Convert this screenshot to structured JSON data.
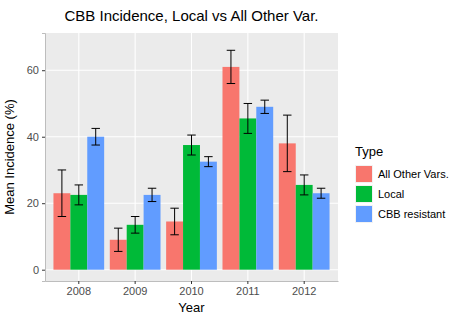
{
  "chart_data": {
    "type": "bar",
    "title": "CBB Incidence, Local vs All Other Var.",
    "x_label": "Year",
    "y_label": "Mean Incidence (%)",
    "legend_title": "Type",
    "categories": [
      "2008",
      "2009",
      "2010",
      "2011",
      "2012"
    ],
    "series": [
      {
        "name": "All Other Vars.",
        "color": "#F8766D",
        "values": [
          23,
          9,
          14.5,
          61,
          38
        ],
        "errors": [
          7,
          3.5,
          4,
          5,
          8.5
        ]
      },
      {
        "name": "Local",
        "color": "#00BA38",
        "values": [
          22.5,
          13.5,
          37.5,
          45.5,
          25.5
        ],
        "errors": [
          3,
          2.5,
          3,
          4.5,
          3
        ]
      },
      {
        "name": "CBB resistant",
        "color": "#619CFF",
        "values": [
          40,
          22.5,
          32.5,
          49,
          23
        ],
        "errors": [
          2.5,
          2,
          1.5,
          2,
          1.5
        ]
      }
    ],
    "ylim": [
      -3.4,
      71.2
    ],
    "yticks": [
      0,
      20,
      40,
      60
    ],
    "grid": true,
    "legend": "right"
  }
}
